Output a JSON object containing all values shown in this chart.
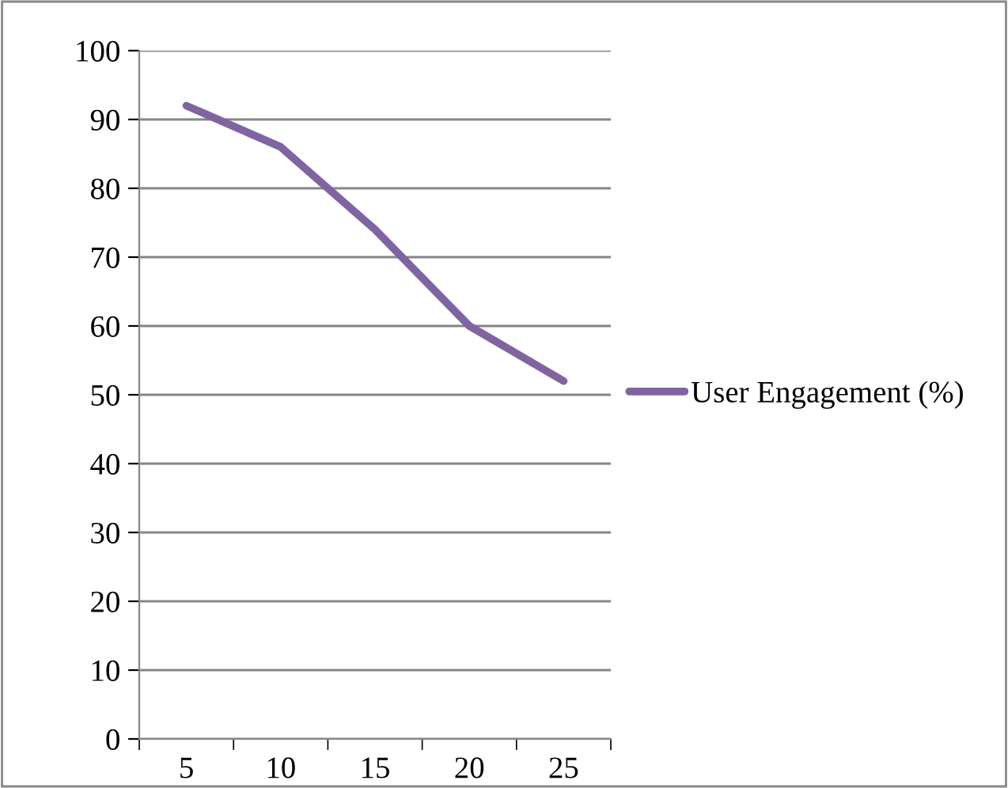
{
  "chart_data": {
    "type": "line",
    "categories": [
      "5",
      "10",
      "15",
      "20",
      "25"
    ],
    "series": [
      {
        "name": "User Engagement (%)",
        "color": "#8064a2",
        "values": [
          92,
          86,
          74,
          60,
          52
        ]
      }
    ],
    "ylim": [
      0,
      100
    ],
    "yticks": [
      0,
      10,
      20,
      30,
      40,
      50,
      60,
      70,
      80,
      90,
      100
    ],
    "grid": "y",
    "legend": "right",
    "marker": "none",
    "line_style": "solid"
  }
}
